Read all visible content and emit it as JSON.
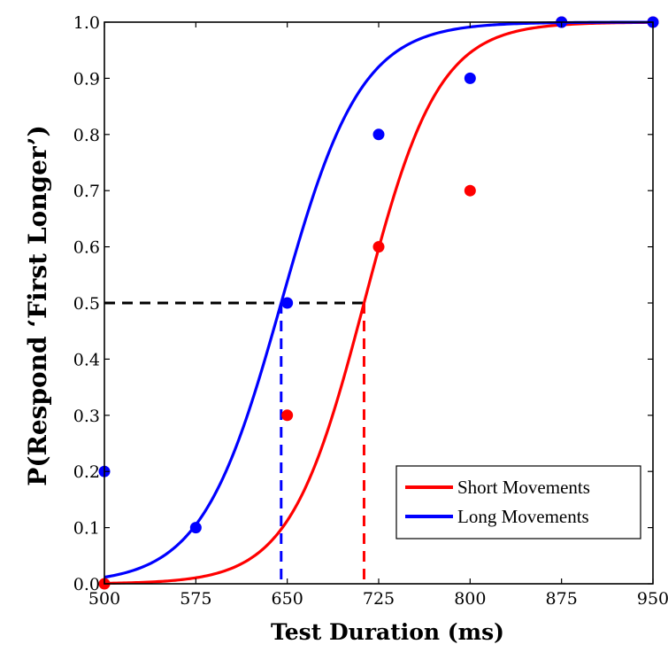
{
  "chart_data": {
    "type": "scatter",
    "xlabel": "Test Duration (ms)",
    "ylabel": "P(Respond ‘First Longer’)",
    "xlim": [
      500,
      950
    ],
    "ylim": [
      0,
      1
    ],
    "xticks": [
      "500",
      "575",
      "650",
      "725",
      "800",
      "875",
      "950"
    ],
    "yticks": [
      "0.0",
      "0.1",
      "0.2",
      "0.3",
      "0.4",
      "0.5",
      "0.6",
      "0.7",
      "0.8",
      "0.9",
      "1.0"
    ],
    "grid": false,
    "legend_position": "bottom-right",
    "series": [
      {
        "name": "Short Movements",
        "color": "#ff0000",
        "points": [
          {
            "x": 500,
            "y": 0.0
          },
          {
            "x": 650,
            "y": 0.3
          },
          {
            "x": 725,
            "y": 0.6
          },
          {
            "x": 800,
            "y": 0.7
          },
          {
            "x": 875,
            "y": 1.0
          },
          {
            "x": 950,
            "y": 1.0
          }
        ],
        "fit": {
          "midpoint": 713,
          "slope": 0.0328
        },
        "threshold_x": 713
      },
      {
        "name": "Long Movements",
        "color": "#0000ff",
        "points": [
          {
            "x": 500,
            "y": 0.2
          },
          {
            "x": 575,
            "y": 0.1
          },
          {
            "x": 650,
            "y": 0.5
          },
          {
            "x": 725,
            "y": 0.8
          },
          {
            "x": 800,
            "y": 0.9
          },
          {
            "x": 875,
            "y": 1.0
          },
          {
            "x": 950,
            "y": 1.0
          }
        ],
        "fit": {
          "midpoint": 645,
          "slope": 0.0306
        },
        "threshold_x": 645
      }
    ],
    "reference_line": {
      "y": 0.5,
      "color": "#000000",
      "style": "dashed"
    }
  }
}
